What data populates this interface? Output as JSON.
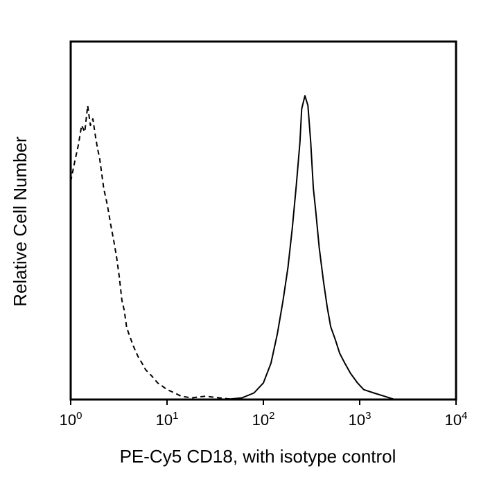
{
  "chart_data": {
    "type": "line",
    "x_scale": "log",
    "xlim": [
      1,
      10000
    ],
    "xlabel": "PE-Cy5 CD18, with isotype control",
    "ylabel": "Relative Cell Number",
    "x_ticks": [
      {
        "value": 1,
        "base": "10",
        "exp": "0"
      },
      {
        "value": 10,
        "base": "10",
        "exp": "1"
      },
      {
        "value": 100,
        "base": "10",
        "exp": "2"
      },
      {
        "value": 1000,
        "base": "10",
        "exp": "3"
      },
      {
        "value": 10000,
        "base": "10",
        "exp": "4"
      }
    ],
    "ylim": [
      0,
      100
    ],
    "grid": false,
    "series": [
      {
        "style": "dashed",
        "color": "#000000",
        "points": [
          [
            1.0,
            66
          ],
          [
            1.1,
            72
          ],
          [
            1.2,
            77
          ],
          [
            1.3,
            83
          ],
          [
            1.4,
            81
          ],
          [
            1.5,
            89
          ],
          [
            1.6,
            83
          ],
          [
            1.7,
            85
          ],
          [
            1.8,
            80
          ],
          [
            1.9,
            76
          ],
          [
            2.0,
            73
          ],
          [
            2.2,
            64
          ],
          [
            2.4,
            59
          ],
          [
            2.6,
            53
          ],
          [
            2.8,
            48
          ],
          [
            3.0,
            43
          ],
          [
            3.2,
            37
          ],
          [
            3.4,
            30
          ],
          [
            3.6,
            27
          ],
          [
            3.8,
            22
          ],
          [
            4.0,
            20
          ],
          [
            4.5,
            16
          ],
          [
            5.0,
            13
          ],
          [
            5.5,
            11
          ],
          [
            6.0,
            9
          ],
          [
            7.0,
            7
          ],
          [
            8.0,
            5
          ],
          [
            9.0,
            4
          ],
          [
            10.0,
            3
          ],
          [
            12.0,
            2
          ],
          [
            14.0,
            1
          ],
          [
            18.0,
            0.5
          ],
          [
            25.0,
            1
          ],
          [
            35.0,
            0.5
          ],
          [
            50.0,
            0
          ]
        ]
      },
      {
        "style": "solid",
        "color": "#000000",
        "points": [
          [
            40,
            0
          ],
          [
            60,
            0.5
          ],
          [
            80,
            2
          ],
          [
            100,
            5
          ],
          [
            120,
            11
          ],
          [
            140,
            20
          ],
          [
            160,
            30
          ],
          [
            180,
            40
          ],
          [
            200,
            52
          ],
          [
            220,
            65
          ],
          [
            240,
            78
          ],
          [
            250,
            88
          ],
          [
            270,
            92
          ],
          [
            290,
            89
          ],
          [
            310,
            78
          ],
          [
            330,
            64
          ],
          [
            350,
            57
          ],
          [
            380,
            46
          ],
          [
            420,
            36
          ],
          [
            460,
            28
          ],
          [
            500,
            22
          ],
          [
            560,
            18
          ],
          [
            620,
            14
          ],
          [
            700,
            11
          ],
          [
            800,
            8
          ],
          [
            950,
            5
          ],
          [
            1100,
            3
          ],
          [
            1400,
            2
          ],
          [
            1800,
            1
          ],
          [
            2300,
            0
          ]
        ]
      }
    ]
  }
}
